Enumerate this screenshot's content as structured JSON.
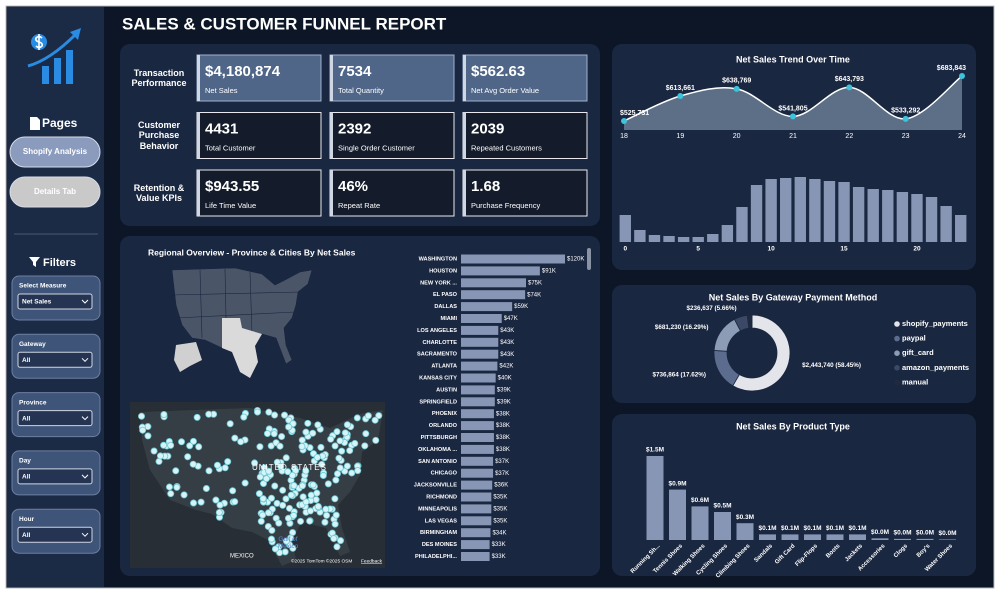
{
  "header": {
    "title": "SALES & CUSTOMER FUNNEL REPORT"
  },
  "sidebar": {
    "pages_title": "Pages",
    "pages": [
      "Shopify Analysis",
      "Details Tab"
    ],
    "filters_title": "Filters",
    "filters": [
      {
        "label": "Select Measure",
        "value": "Net Sales"
      },
      {
        "label": "Gateway",
        "value": "All"
      },
      {
        "label": "Province",
        "value": "All"
      },
      {
        "label": "Day",
        "value": "All"
      },
      {
        "label": "Hour",
        "value": "All"
      }
    ]
  },
  "kpis": {
    "rows": [
      {
        "label": "Transaction Performance",
        "cards": [
          {
            "value": "$4,180,874",
            "label": "Net Sales"
          },
          {
            "value": "7534",
            "label": "Total Quantity"
          },
          {
            "value": "$562.63",
            "label": "Net Avg Order Value"
          }
        ]
      },
      {
        "label": "Customer Purchase Behavior",
        "cards": [
          {
            "value": "4431",
            "label": "Total Customer"
          },
          {
            "value": "2392",
            "label": "Single Order Customer"
          },
          {
            "value": "2039",
            "label": "Repeated Customers"
          }
        ]
      },
      {
        "label": "Retention & Value KPIs",
        "cards": [
          {
            "value": "$943.55",
            "label": "Life Time Value"
          },
          {
            "value": "46%",
            "label": "Repeat Rate"
          },
          {
            "value": "1.68",
            "label": "Purchase Frequency"
          }
        ]
      }
    ]
  },
  "map": {
    "title": "Regional Overview - Province & Cities By Net Sales",
    "country_label": "UNITED STATES",
    "mexico_label": "MEXICO",
    "gulf_label": "Gulf of Mexico",
    "attribution": "©2025 TomTom ©2025 OSM",
    "feedback": "Feedback"
  },
  "chart_data": [
    {
      "type": "hbar",
      "categories": [
        "WASHINGTON",
        "HOUSTON",
        "NEW YORK ...",
        "EL PASO",
        "DALLAS",
        "MIAMI",
        "LOS ANGELES",
        "CHARLOTTE",
        "SACRAMENTO",
        "ATLANTA",
        "KANSAS CITY",
        "AUSTIN",
        "SPRINGFIELD",
        "PHOENIX",
        "ORLANDO",
        "PITTSBURGH",
        "OKLAHOMA ...",
        "SAN ANTONIO",
        "CHICAGO",
        "JACKSONVILLE",
        "RICHMOND",
        "MINNEAPOLIS",
        "LAS VEGAS",
        "BIRMINGHAM",
        "DES MOINES",
        "PHILADELPHI..."
      ],
      "values": [
        120,
        91,
        75,
        74,
        59,
        47,
        43,
        43,
        43,
        42,
        40,
        39,
        39,
        38,
        38,
        38,
        38,
        37,
        37,
        36,
        35,
        35,
        35,
        34,
        33,
        33
      ],
      "value_labels": [
        "$120K",
        "$91K",
        "$75K",
        "$74K",
        "$59K",
        "$47K",
        "$43K",
        "$43K",
        "$43K",
        "$42K",
        "$40K",
        "$39K",
        "$39K",
        "$38K",
        "$38K",
        "$38K",
        "$38K",
        "$37K",
        "$37K",
        "$36K",
        "$35K",
        "$35K",
        "$35K",
        "$34K",
        "$33K",
        "$33K"
      ],
      "color": "#8896b6"
    },
    {
      "type": "area",
      "title": "Net Sales Trend Over Time",
      "x": [
        18,
        19,
        20,
        21,
        22,
        23,
        24
      ],
      "values": [
        525731,
        613661,
        638769,
        541805,
        643793,
        533292,
        683843
      ],
      "value_labels": [
        "$525,731",
        "$613,661",
        "$638,769",
        "$541,805",
        "$643,793",
        "$533,292",
        "$683,843"
      ],
      "xlim": [
        18,
        24
      ],
      "xticks": [
        18,
        19,
        20,
        21,
        22,
        23,
        24
      ],
      "color": "#5c6f86",
      "line_color": "#ffffff",
      "marker_color": "#3ec3dd"
    },
    {
      "type": "bar",
      "x": [
        0,
        1,
        2,
        3,
        4,
        5,
        6,
        7,
        8,
        9,
        10,
        11,
        12,
        13,
        14,
        15,
        16,
        17,
        18,
        19,
        20,
        21,
        22,
        23
      ],
      "values": [
        27,
        12,
        7,
        6,
        5,
        5,
        8,
        17,
        35,
        57,
        63,
        64,
        65,
        63,
        61,
        60,
        55,
        53,
        52,
        50,
        48,
        45,
        36,
        27
      ],
      "xlim": [
        -0.5,
        23.5
      ],
      "xticks": [
        0,
        5,
        10,
        15,
        20
      ],
      "color": "#8896b6"
    },
    {
      "type": "donut",
      "title": "Net Sales By Gateway Payment Method",
      "categories": [
        "shopify_payments",
        "paypal",
        "gift_card",
        "amazon_payments",
        "manual"
      ],
      "values": [
        2443740,
        736864,
        681230,
        236637,
        82403
      ],
      "value_labels": [
        "$2,443,740 (58.45%)",
        "$736,864 (17.62%)",
        "$681,230 (16.29%)",
        "$236,637 (5.66%)",
        null
      ],
      "colors": [
        "#e4e5ea",
        "#5b6c8e",
        "#8c9bb6",
        "#3c4966",
        "#1f2a41"
      ],
      "legend": "right"
    },
    {
      "type": "column",
      "title": "Net Sales By Product Type",
      "categories": [
        "Running Sh...",
        "Tennis Shoes",
        "Walking Shoes",
        "Cycling Shoes",
        "Climbing Shoes",
        "Sandals",
        "Gift Card",
        "Flip-Flops",
        "Boots",
        "Jackets",
        "Accessories",
        "Clogs",
        "Boy's",
        "Water Shoes"
      ],
      "values": [
        1.5,
        0.9,
        0.6,
        0.5,
        0.3,
        0.1,
        0.1,
        0.1,
        0.1,
        0.1,
        0.03,
        0.02,
        0.02,
        0.01
      ],
      "value_labels": [
        "$1.5M",
        "$0.9M",
        "$0.6M",
        "$0.5M",
        "$0.3M",
        "$0.1M",
        "$0.1M",
        "$0.1M",
        "$0.1M",
        "$0.1M",
        "$0.0M",
        "$0.0M",
        "$0.0M",
        "$0.0M"
      ],
      "color": "#8896b6"
    }
  ]
}
